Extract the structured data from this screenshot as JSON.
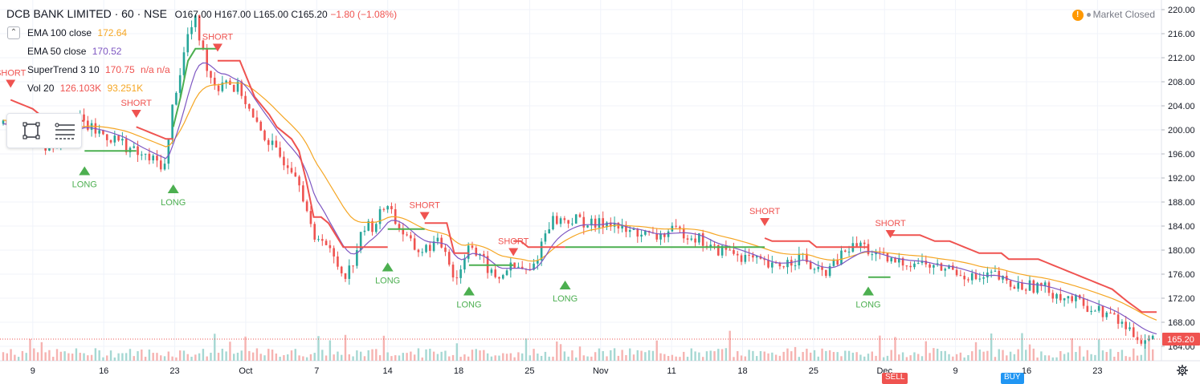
{
  "header": {
    "symbol_line": "DCB BANK LIMITED · 60 · NSE",
    "ohlc": "O167.00 H167.00 L165.00 C165.20",
    "change": "−1.80 (−1.08%)"
  },
  "indicators": [
    {
      "name": "EMA 100 close",
      "value": "172.64",
      "value2": "",
      "color": "#f5a623"
    },
    {
      "name": "EMA 50 close",
      "value": "170.52",
      "value2": "",
      "color": "#7e57c2"
    },
    {
      "name": "SuperTrend 3 10",
      "value": "170.75",
      "value2": "n/a  n/a",
      "color": "#ef5350"
    },
    {
      "name": "Vol 20",
      "value": "126.103K",
      "value2": "93.251K",
      "color": "#ef5350",
      "color2": "#f5a623"
    }
  ],
  "market_status": "Market Closed",
  "current_price_label": "165.20",
  "bottom_tags": [
    {
      "label": "SELL",
      "color": "#ef5350"
    },
    {
      "label": "BUY",
      "color": "#2196f3"
    }
  ],
  "colors": {
    "up": "#26a69a",
    "down": "#ef5350",
    "supertrend_down": "#ef5350",
    "supertrend_up": "#4caf50",
    "ema100": "#f5a623",
    "ema50": "#7e57c2"
  },
  "icons": [
    "rectangle-tool-icon",
    "horizontal-lines-icon",
    "alert-icon",
    "settings-gear-icon"
  ],
  "chart_data": {
    "type": "candlestick",
    "title": "DCB BANK LIMITED · 60 · NSE",
    "x_ticks": [
      "9",
      "16",
      "23",
      "Oct",
      "7",
      "14",
      "18",
      "25",
      "Nov",
      "11",
      "18",
      "25",
      "Dec",
      "9",
      "16",
      "23"
    ],
    "y_ticks": [
      "220.00",
      "216.00",
      "212.00",
      "208.00",
      "204.00",
      "200.00",
      "196.00",
      "192.00",
      "188.00",
      "184.00",
      "180.00",
      "176.00",
      "172.00",
      "168.00",
      "164.00"
    ],
    "ylim": [
      163,
      221
    ],
    "grid": true,
    "price_path": [
      [
        0,
        201
      ],
      [
        2,
        200
      ],
      [
        4,
        199
      ],
      [
        6,
        197
      ],
      [
        8,
        199
      ],
      [
        10,
        202
      ],
      [
        12,
        200
      ],
      [
        14,
        199
      ],
      [
        16,
        198
      ],
      [
        18,
        196
      ],
      [
        20,
        195
      ],
      [
        22,
        194
      ],
      [
        23,
        205
      ],
      [
        24,
        210
      ],
      [
        25,
        216
      ],
      [
        26,
        218
      ],
      [
        27,
        213
      ],
      [
        28,
        209
      ],
      [
        29,
        207
      ],
      [
        30,
        209
      ],
      [
        31,
        207
      ],
      [
        32,
        207
      ],
      [
        34,
        201
      ],
      [
        36,
        198
      ],
      [
        37,
        196
      ],
      [
        38,
        195
      ],
      [
        39,
        194
      ],
      [
        40,
        192
      ],
      [
        41,
        187
      ],
      [
        42,
        181
      ],
      [
        43,
        183
      ],
      [
        44,
        180
      ],
      [
        45,
        178
      ],
      [
        46,
        176
      ],
      [
        47,
        177
      ],
      [
        48,
        181
      ],
      [
        49,
        184
      ],
      [
        50,
        184
      ],
      [
        51,
        186
      ],
      [
        52,
        188
      ],
      [
        53,
        185
      ],
      [
        54,
        183
      ],
      [
        55,
        181
      ],
      [
        56,
        180
      ],
      [
        57,
        180
      ],
      [
        58,
        181
      ],
      [
        59,
        181
      ],
      [
        60,
        180
      ],
      [
        61,
        175
      ],
      [
        62,
        177
      ],
      [
        63,
        182
      ],
      [
        64,
        179
      ],
      [
        65,
        178
      ],
      [
        66,
        176
      ],
      [
        67,
        175
      ],
      [
        68,
        177
      ],
      [
        69,
        177
      ],
      [
        70,
        177
      ],
      [
        71,
        176
      ],
      [
        72,
        178
      ],
      [
        73,
        182
      ],
      [
        74,
        185
      ],
      [
        76,
        185
      ],
      [
        78,
        185
      ],
      [
        80,
        184
      ],
      [
        82,
        185
      ],
      [
        84,
        183
      ],
      [
        86,
        183
      ],
      [
        88,
        182
      ],
      [
        90,
        183
      ],
      [
        92,
        183
      ],
      [
        94,
        182
      ],
      [
        95,
        181
      ],
      [
        96,
        180
      ],
      [
        98,
        180
      ],
      [
        100,
        179
      ],
      [
        102,
        178
      ],
      [
        104,
        177
      ],
      [
        106,
        178
      ],
      [
        108,
        179
      ],
      [
        110,
        176
      ],
      [
        112,
        177
      ],
      [
        114,
        180
      ],
      [
        116,
        181
      ],
      [
        118,
        179
      ],
      [
        120,
        178
      ],
      [
        122,
        178
      ],
      [
        124,
        178
      ],
      [
        126,
        177
      ],
      [
        128,
        177
      ],
      [
        130,
        176
      ],
      [
        132,
        175
      ],
      [
        134,
        176
      ],
      [
        136,
        174
      ],
      [
        138,
        174
      ],
      [
        140,
        174
      ],
      [
        142,
        173
      ],
      [
        144,
        172
      ],
      [
        146,
        171
      ],
      [
        148,
        170
      ],
      [
        150,
        169
      ],
      [
        152,
        167
      ],
      [
        154,
        165.2
      ]
    ],
    "supertrend": {
      "signals": [
        {
          "label": "SHORT",
          "x": 1,
          "price": 207
        },
        {
          "label": "LONG",
          "x": 11,
          "price": 195
        },
        {
          "label": "SHORT",
          "x": 18,
          "price": 202
        },
        {
          "label": "LONG",
          "x": 23,
          "price": 192
        },
        {
          "label": "SHORT",
          "x": 29,
          "price": 213
        },
        {
          "label": "LONG",
          "x": 52,
          "price": 179
        },
        {
          "label": "SHORT",
          "x": 57,
          "price": 185
        },
        {
          "label": "LONG",
          "x": 63,
          "price": 175
        },
        {
          "label": "SHORT",
          "x": 69,
          "price": 179
        },
        {
          "label": "LONG",
          "x": 76,
          "price": 176
        },
        {
          "label": "SHORT",
          "x": 103,
          "price": 184
        },
        {
          "label": "LONG",
          "x": 117,
          "price": 175
        },
        {
          "label": "SHORT",
          "x": 120,
          "price": 182
        }
      ]
    },
    "ema100_last": 172.64,
    "ema50_last": 170.52,
    "last_close": 165.2,
    "volume_last": "126.103K",
    "volume_ma": "93.251K"
  }
}
